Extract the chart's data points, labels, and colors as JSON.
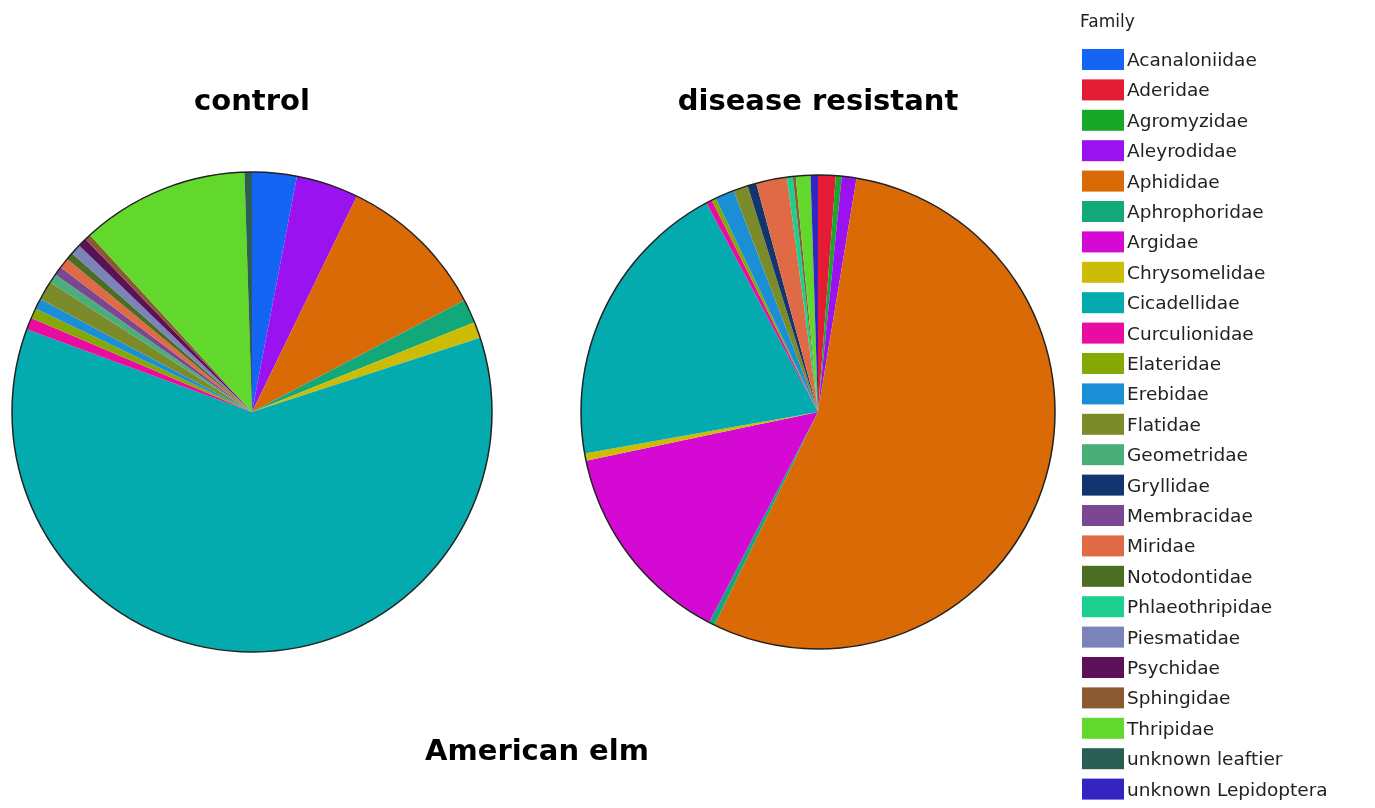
{
  "chart_data": [
    {
      "type": "pie",
      "title": "control",
      "categories": [
        "Acanaloniidae",
        "Aderidae",
        "Agromyzidae",
        "Aleyrodidae",
        "Aphididae",
        "Aphrophoridae",
        "Argidae",
        "Chrysomelidae",
        "Cicadellidae",
        "Curculionidae",
        "Elateridae",
        "Erebidae",
        "Flatidae",
        "Geometridae",
        "Gryllidae",
        "Membracidae",
        "Miridae",
        "Notodontidae",
        "Phlaeothripidae",
        "Piesmatidae",
        "Psychidae",
        "Sphingidae",
        "Thripidae",
        "unknown leaftier",
        "unknown Lepidoptera"
      ],
      "values": [
        3.0,
        0,
        0,
        4.2,
        10.1,
        1.6,
        0,
        1.1,
        60.6,
        0.8,
        0.7,
        0.7,
        1.3,
        0.6,
        0,
        0.6,
        0.7,
        0.5,
        0,
        0.7,
        0.6,
        0.4,
        11.3,
        0.5,
        0
      ],
      "colors": [
        "#1565f5",
        "#e31b35",
        "#17a82a",
        "#9b12f0",
        "#da6a06",
        "#13a87a",
        "#d40ad4",
        "#cdbc05",
        "#03aaae",
        "#e80da0",
        "#86a805",
        "#1a8fd6",
        "#7c8b2a",
        "#4aae7a",
        "#13356e",
        "#7b4692",
        "#df6a45",
        "#4c6e22",
        "#1ccf8e",
        "#7a84b8",
        "#5b1057",
        "#8b5a32",
        "#62d82c",
        "#2a5e52",
        "#3425c2"
      ],
      "legend": "right",
      "legend_title": "Family",
      "annotations": [
        "American elm"
      ]
    },
    {
      "type": "pie",
      "title": "disease resistant",
      "categories": [
        null,
        null,
        null,
        null,
        null,
        null,
        null,
        null,
        null,
        null,
        null,
        null,
        null,
        null,
        null,
        null,
        null,
        null,
        null,
        null,
        null,
        null,
        null,
        null,
        null
      ],
      "values": [
        0,
        1.2,
        0.4,
        1.0,
        54.6,
        0.4,
        14.1,
        0.5,
        20.0,
        0.4,
        0.3,
        1.3,
        1.0,
        0,
        0.6,
        0,
        2.1,
        0,
        0.4,
        0,
        0,
        0.2,
        1.0,
        0,
        0.5
      ],
      "colors": [
        "#1565f5",
        "#e31b35",
        "#17a82a",
        "#9b12f0",
        "#da6a06",
        "#13a87a",
        "#d40ad4",
        "#cdbc05",
        "#03aaae",
        "#e80da0",
        "#86a805",
        "#1a8fd6",
        "#7c8b2a",
        "#4aae7a",
        "#13356e",
        "#7b4692",
        "#df6a45",
        "#4c6e22",
        "#1ccf8e",
        "#7a84b8",
        "#5b1057",
        "#8b5a32",
        "#62d82c",
        "#2a5e52",
        "#3425c2"
      ],
      "legend": false
    }
  ]
}
